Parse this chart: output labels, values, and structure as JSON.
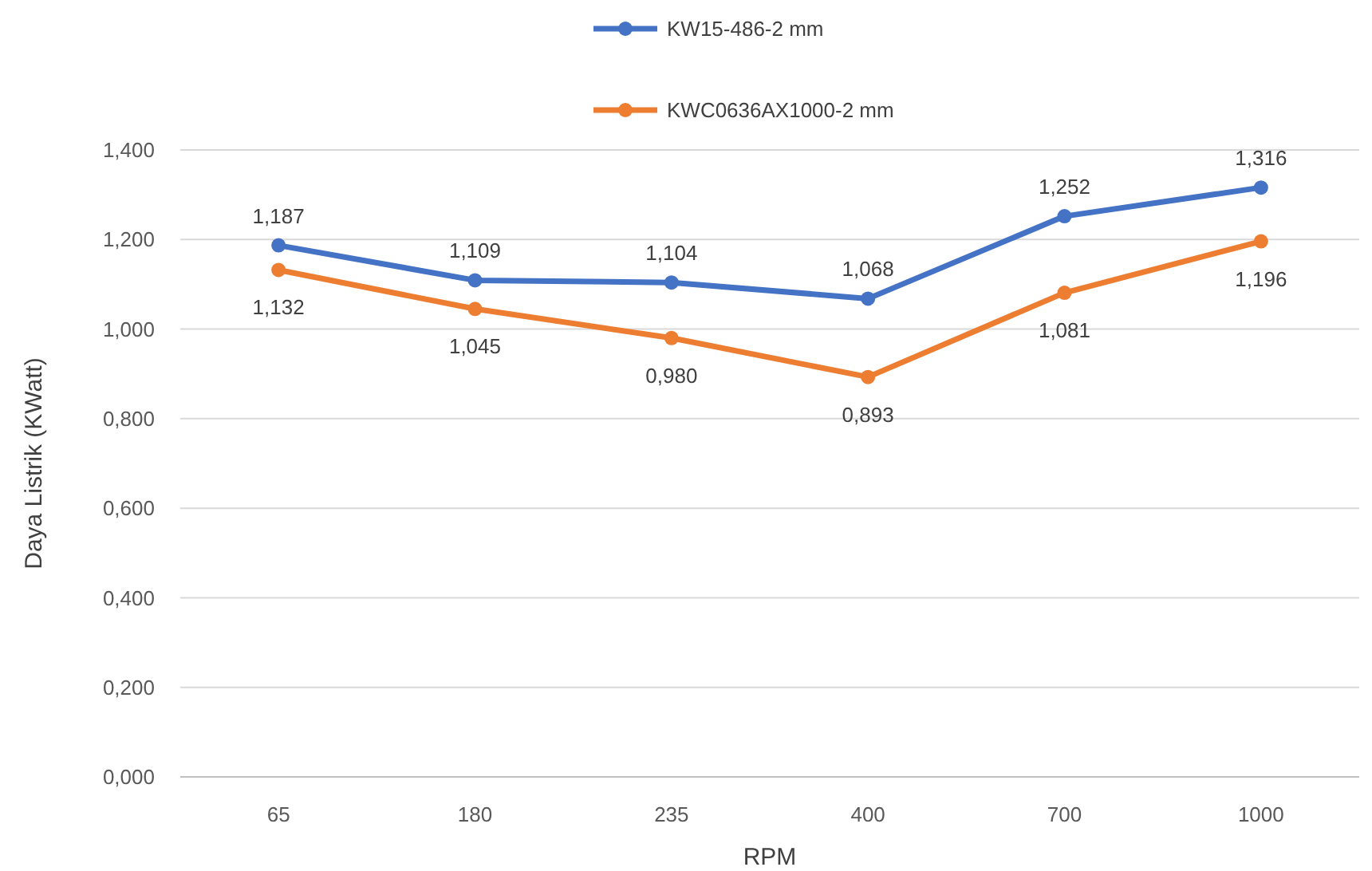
{
  "chart_data": {
    "type": "line",
    "xlabel": "RPM",
    "ylabel": "Daya Listrik (KWatt)",
    "categories": [
      "65",
      "180",
      "235",
      "400",
      "700",
      "1000"
    ],
    "series": [
      {
        "name": "KW15-486-2 mm",
        "color": "#4472c4",
        "values": [
          1.187,
          1.109,
          1.104,
          1.068,
          1.252,
          1.316
        ],
        "value_labels": [
          "1,187",
          "1,109",
          "1,104",
          "1,068",
          "1,252",
          "1,316"
        ]
      },
      {
        "name": "KWC0636AX1000-2 mm",
        "color": "#ed7d31",
        "values": [
          1.132,
          1.045,
          0.98,
          0.893,
          1.081,
          1.196
        ],
        "value_labels": [
          "1,132",
          "1,045",
          "0,980",
          "0,893",
          "1,081",
          "1,196"
        ]
      }
    ],
    "ylim": [
      0,
      1.4
    ],
    "yticks": [
      {
        "value": 0,
        "label": "0,000"
      },
      {
        "value": 0.2,
        "label": "0,200"
      },
      {
        "value": 0.4,
        "label": "0,400"
      },
      {
        "value": 0.6,
        "label": "0,600"
      },
      {
        "value": 0.8,
        "label": "0,800"
      },
      {
        "value": 1,
        "label": "1,000"
      },
      {
        "value": 1.2,
        "label": "1,200"
      },
      {
        "value": 1.4,
        "label": "1,400"
      }
    ],
    "grid": "y",
    "legend": "top",
    "marker": "circle",
    "line_style": "solid"
  }
}
